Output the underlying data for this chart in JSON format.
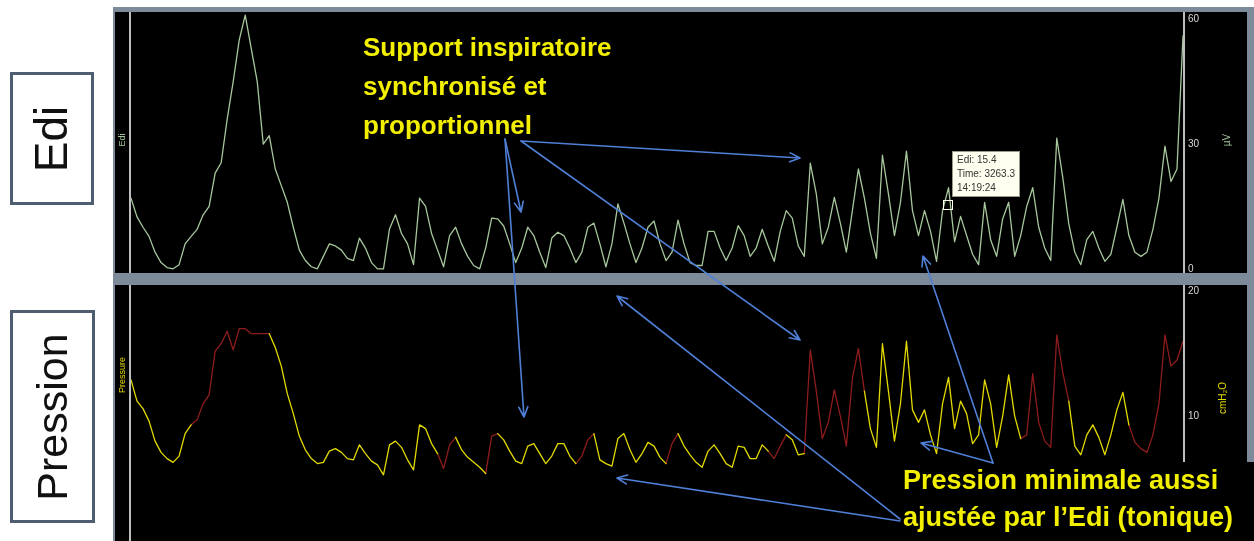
{
  "chart_data": [
    {
      "type": "line",
      "title": "Edi",
      "ylabel": "µV",
      "tick_labels": "y",
      "ylim": [
        -1,
        61.5
      ],
      "yticks": [
        0,
        30,
        60
      ],
      "categories": [
        null,
        null,
        null,
        null,
        null,
        null,
        null,
        null,
        null,
        null,
        null,
        null,
        null,
        null,
        null,
        null,
        null,
        null,
        null,
        null,
        null,
        null,
        null,
        null,
        null,
        null,
        null,
        null,
        null,
        null,
        null,
        null,
        null,
        null,
        null,
        null,
        null,
        null,
        null,
        null,
        null,
        null,
        null,
        null,
        null,
        null,
        null,
        null,
        null,
        null,
        null,
        null,
        null,
        null,
        null,
        null,
        null,
        null,
        null,
        null,
        null,
        null,
        null,
        null,
        null,
        null,
        null,
        null,
        null,
        null,
        null,
        null,
        null,
        null,
        null,
        null,
        null,
        null,
        null,
        null,
        null,
        null,
        null,
        null,
        null,
        null,
        null,
        null,
        null,
        null,
        null,
        null,
        null,
        null,
        null,
        null,
        null,
        null,
        null,
        null,
        null,
        null,
        null,
        null,
        null,
        null,
        null,
        null,
        null,
        null,
        null,
        null,
        null,
        null,
        null,
        null,
        null,
        null,
        null,
        null,
        null,
        null,
        null,
        null,
        null,
        null,
        null,
        null,
        null,
        null,
        null,
        null,
        null,
        null,
        null,
        null,
        null,
        null,
        null,
        null,
        null,
        null,
        null,
        null,
        null,
        null,
        null,
        null,
        null,
        null,
        null,
        null,
        null,
        null,
        null,
        null,
        null,
        null,
        null,
        null,
        null,
        null,
        null,
        null,
        null,
        null,
        null,
        null,
        null,
        null,
        null,
        null,
        null,
        null,
        null,
        null
      ],
      "series": [
        {
          "color": "#a6c79c",
          "values": [
            17,
            12.5,
            10,
            7.8,
            4,
            1.5,
            0.3,
            0,
            1,
            6,
            7.8,
            9.5,
            13,
            15,
            23,
            25.5,
            36,
            45,
            55,
            61,
            53,
            45,
            30,
            32,
            24,
            20,
            16,
            10,
            4.5,
            2,
            0.5,
            0,
            3,
            6,
            5.5,
            4.5,
            2.5,
            2,
            7.4,
            5,
            1.5,
            0,
            0,
            9.6,
            13,
            8.5,
            6,
            1,
            17,
            15,
            8.5,
            4.5,
            0.5,
            8,
            10,
            6,
            3,
            0.8,
            0,
            5,
            12.2,
            12,
            10.3,
            6,
            1.5,
            5,
            10,
            8,
            4,
            0.3,
            7.4,
            8.8,
            8,
            5,
            1.5,
            4,
            10,
            11,
            6,
            0.5,
            6,
            15.6,
            11,
            6,
            1.5,
            5,
            10,
            11.5,
            6,
            2,
            4,
            11.7,
            6,
            1.5,
            0.8,
            0.8,
            9,
            9,
            5,
            2,
            5,
            10.4,
            8,
            3,
            5,
            9.5,
            5.5,
            1.8,
            9,
            14,
            12.2,
            5.5,
            3,
            25.4,
            18,
            6,
            10,
            17.2,
            11,
            4,
            14,
            24,
            17,
            8.6,
            2.5,
            27.3,
            18,
            8,
            16,
            28.3,
            14,
            8,
            14,
            9,
            1.8,
            14,
            19.5,
            6.5,
            12.6,
            8,
            3.5,
            1,
            16,
            7,
            3,
            12,
            16,
            3,
            8,
            15,
            19.5,
            10,
            5,
            2,
            31.4,
            22,
            10.8,
            4,
            1,
            7,
            9,
            5,
            1.8,
            3.5,
            10,
            16.7,
            8,
            4,
            3,
            4,
            9.5,
            17,
            29.5,
            21,
            24,
            56
          ]
        }
      ],
      "annotations": [
        "Edi",
        {
          "text": "Edi: 15.4\nTime: 3263.3\n14:19:24",
          "y": 15.4
        },
        "Support inspiratoire synchronisé et proportionnel"
      ]
    },
    {
      "type": "line",
      "title": "Pression",
      "ylabel": "cmH₂O",
      "tick_labels": "y",
      "ylim": [
        0,
        20.5
      ],
      "yticks": [
        10,
        20
      ],
      "categories": [
        null,
        null,
        null,
        null,
        null,
        null,
        null,
        null,
        null,
        null,
        null,
        null,
        null,
        null,
        null,
        null,
        null,
        null,
        null,
        null,
        null,
        null,
        null,
        null,
        null,
        null,
        null,
        null,
        null,
        null,
        null,
        null,
        null,
        null,
        null,
        null,
        null,
        null,
        null,
        null,
        null,
        null,
        null,
        null,
        null,
        null,
        null,
        null,
        null,
        null,
        null,
        null,
        null,
        null,
        null,
        null,
        null,
        null,
        null,
        null,
        null,
        null,
        null,
        null,
        null,
        null,
        null,
        null,
        null,
        null,
        null,
        null,
        null,
        null,
        null,
        null,
        null,
        null,
        null,
        null,
        null,
        null,
        null,
        null,
        null,
        null,
        null,
        null,
        null,
        null,
        null,
        null,
        null,
        null,
        null,
        null,
        null,
        null,
        null,
        null,
        null,
        null,
        null,
        null,
        null,
        null,
        null,
        null,
        null,
        null,
        null,
        null,
        null,
        null,
        null,
        null,
        null,
        null,
        null,
        null,
        null,
        null,
        null,
        null,
        null,
        null,
        null,
        null,
        null,
        null,
        null,
        null,
        null,
        null,
        null,
        null,
        null,
        null,
        null,
        null,
        null,
        null,
        null,
        null,
        null,
        null,
        null,
        null,
        null,
        null,
        null,
        null,
        null,
        null,
        null,
        null,
        null,
        null,
        null,
        null,
        null,
        null,
        null,
        null,
        null,
        null,
        null,
        null,
        null,
        null,
        null,
        null,
        null,
        null,
        null,
        null
      ],
      "series": [
        {
          "color": "#e2d900",
          "values": [
            12.9,
            11.2,
            10.6,
            9.6,
            8,
            7.1,
            6.6,
            6.3,
            6.8,
            8.6,
            9.3,
            null,
            null,
            null,
            null,
            null,
            null,
            null,
            null,
            null,
            null,
            null,
            null,
            16.6,
            15.5,
            14,
            11.8,
            10.2,
            8.4,
            7.3,
            6.6,
            6.2,
            6.3,
            7.2,
            7.4,
            7.1,
            6.6,
            6.5,
            7.7,
            7,
            6.4,
            6.1,
            5.3,
            7.7,
            8,
            7.5,
            6.5,
            5.7,
            9.3,
            9,
            7.8,
            7,
            null,
            null,
            8.3,
            7.3,
            6.7,
            6.3,
            5.9,
            5.4,
            null,
            8.6,
            8.1,
            7.2,
            6.4,
            6.2,
            7.6,
            7.8,
            7,
            6.2,
            6.8,
            7.8,
            7.8,
            6.8,
            6.2,
            null,
            null,
            8.6,
            6.5,
            6.2,
            6,
            8.2,
            8.6,
            7.3,
            6.3,
            7,
            7.9,
            7.6,
            6.7,
            6.2,
            null,
            8.6,
            7.6,
            6.9,
            6.3,
            5.9,
            7.2,
            7.7,
            7,
            6.2,
            5.9,
            7.6,
            7.5,
            6.6,
            6.6,
            7.7,
            7.2,
            null,
            null,
            8.5,
            8.1,
            6.9,
            7,
            null,
            null,
            null,
            null,
            null,
            null,
            null,
            null,
            null,
            12,
            9,
            7.5,
            15.8,
            12,
            8,
            11,
            16,
            10.5,
            9.5,
            10.5,
            8.5,
            7,
            11,
            13.1,
            9,
            11.2,
            10.2,
            7.8,
            8.5,
            12.9,
            11,
            7.5,
            10,
            13.3,
            10,
            8.2,
            null,
            null,
            null,
            null,
            null,
            null,
            null,
            11.2,
            7.6,
            6.9,
            8.5,
            9.3,
            8.3,
            6.9,
            8.5,
            10.5,
            11.9,
            9.3,
            null,
            null,
            null,
            null,
            null,
            null,
            null,
            null,
            null
          ]
        },
        {
          "color": "#8e1c1c",
          "values": [
            null,
            null,
            null,
            null,
            null,
            null,
            null,
            null,
            null,
            null,
            9.3,
            9.7,
            11,
            11.7,
            15.2,
            15.8,
            16.8,
            15.3,
            17,
            17,
            16.6,
            16.6,
            16.6,
            16.6,
            null,
            null,
            null,
            null,
            null,
            null,
            null,
            null,
            null,
            null,
            null,
            null,
            null,
            null,
            null,
            null,
            null,
            null,
            null,
            null,
            null,
            null,
            null,
            null,
            null,
            null,
            null,
            7,
            5.8,
            7.7,
            8.3,
            null,
            null,
            null,
            null,
            5.4,
            8.4,
            8.6,
            null,
            null,
            null,
            null,
            null,
            null,
            null,
            null,
            null,
            null,
            null,
            null,
            6.2,
            6.8,
            8.1,
            8.6,
            null,
            null,
            null,
            null,
            null,
            null,
            null,
            null,
            null,
            null,
            null,
            6.2,
            7.8,
            8.6,
            null,
            null,
            null,
            null,
            null,
            null,
            null,
            null,
            null,
            null,
            null,
            null,
            null,
            null,
            7.2,
            6.6,
            7.6,
            8.5,
            null,
            null,
            7,
            15.3,
            12,
            8.2,
            9.5,
            12.1,
            10,
            7.6,
            13,
            15.4,
            12,
            null,
            null,
            null,
            null,
            null,
            null,
            null,
            null,
            null,
            null,
            null,
            null,
            null,
            null,
            null,
            null,
            null,
            null,
            null,
            null,
            null,
            null,
            null,
            null,
            null,
            8.2,
            8.5,
            13.4,
            9.5,
            8,
            7.5,
            16.5,
            13.5,
            11.2,
            null,
            null,
            null,
            null,
            null,
            null,
            null,
            null,
            null,
            9.3,
            7.9,
            7.4,
            7.1,
            8.5,
            11,
            16.5,
            14,
            14.5,
            16
          ]
        }
      ],
      "annotations": [
        "Pressure",
        "Pression minimale aussi ajustée par l’Edi (tonique)"
      ]
    }
  ]
}
